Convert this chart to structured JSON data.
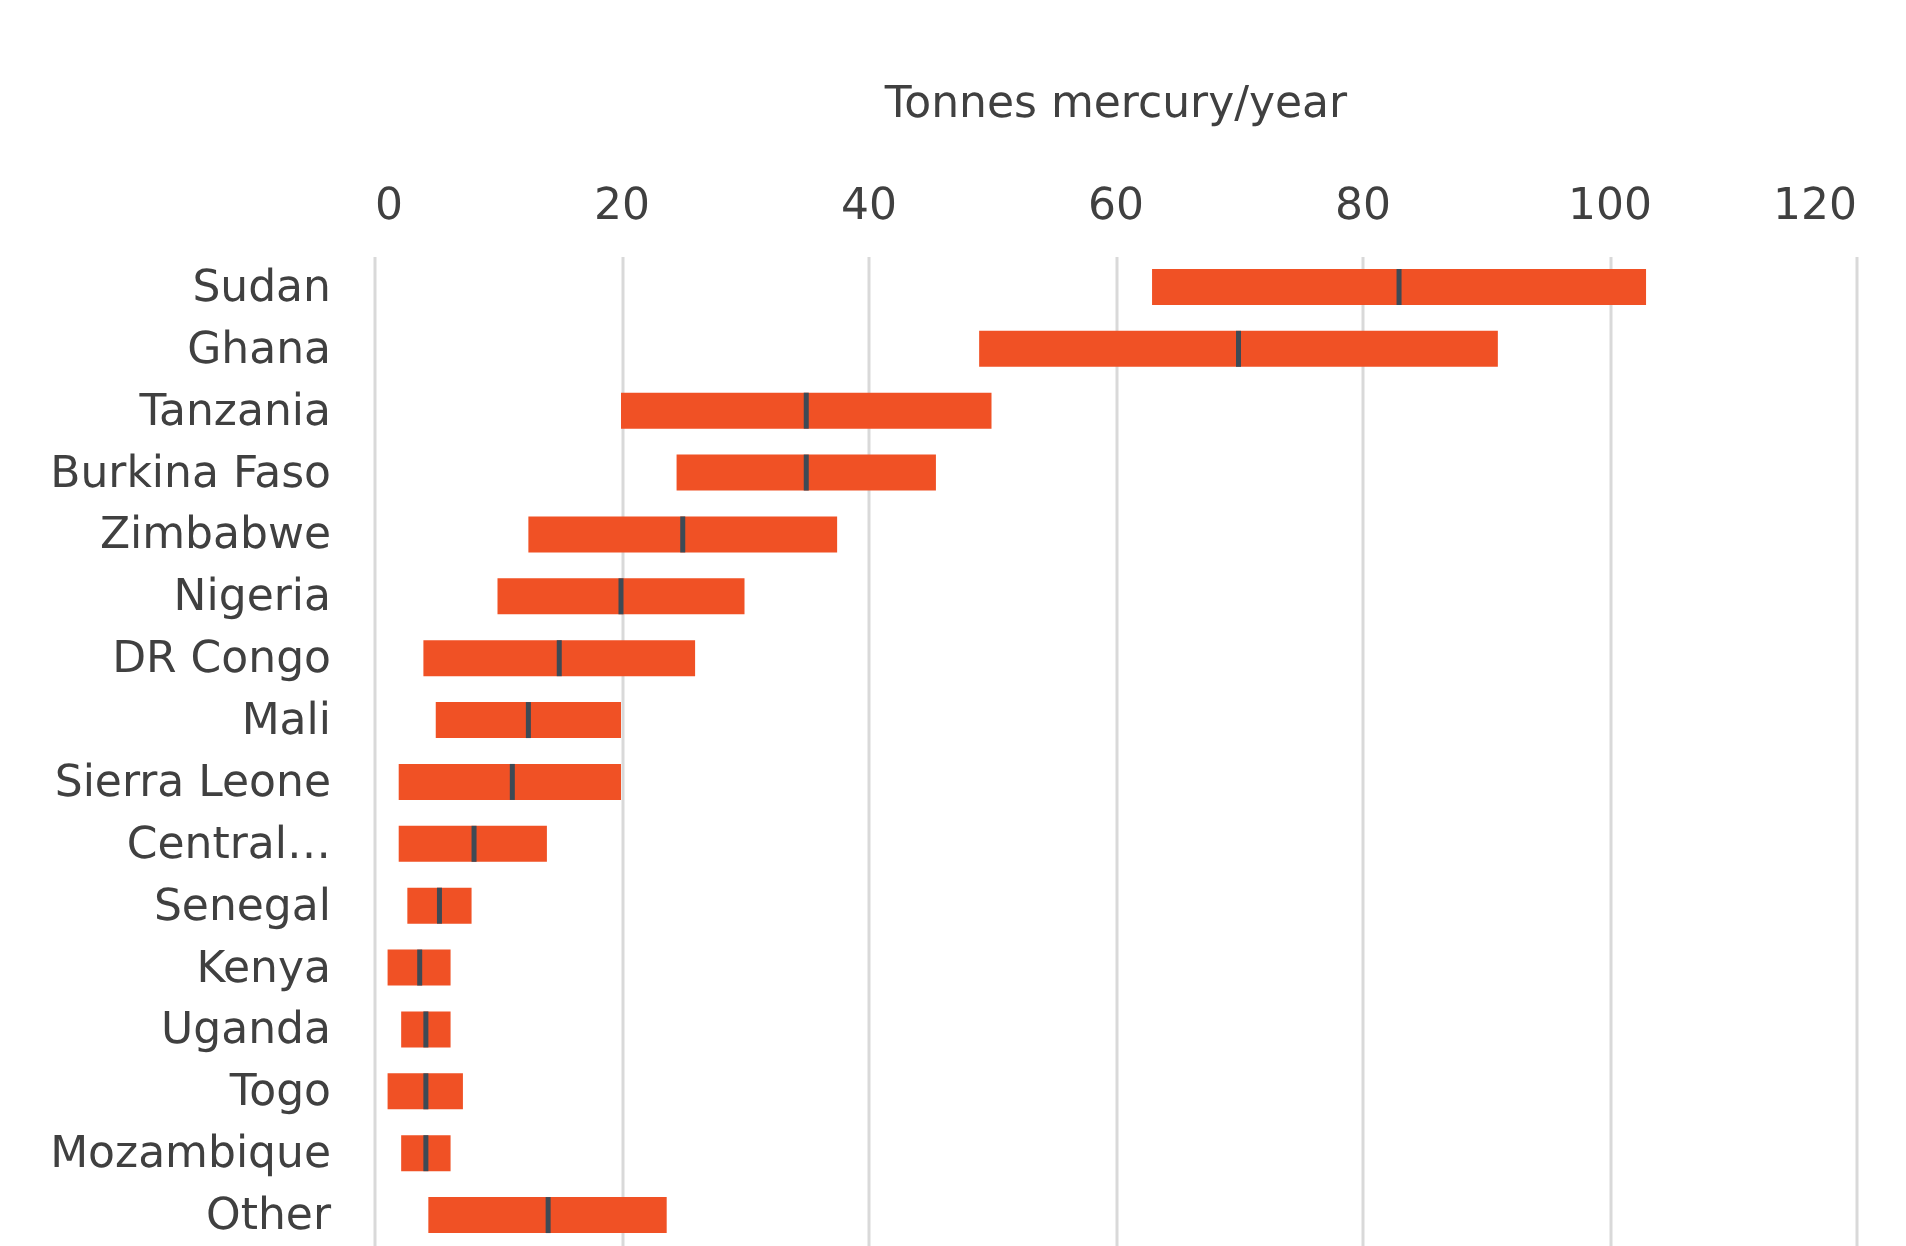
{
  "chart_data": {
    "type": "box",
    "orientation": "horizontal",
    "xlabel": "Tonnes mercury/year",
    "categories": [
      "Sudan",
      "Ghana",
      "Tanzania",
      "Burkina Faso",
      "Zimbabwe",
      "Nigeria",
      "DR Congo",
      "Mali",
      "Sierra Leone",
      "Central…",
      "Senegal",
      "Kenya",
      "Uganda",
      "Togo",
      "Mozambique",
      "Other"
    ],
    "series": [
      {
        "color": "#f05125",
        "boxes": [
          {
            "low": 63,
            "q1": 63,
            "median": 83,
            "q3": 103,
            "high": 103
          },
          {
            "low": 49,
            "q1": 49,
            "median": 70,
            "q3": 91,
            "high": 91
          },
          {
            "low": 20,
            "q1": 20,
            "median": 35,
            "q3": 50,
            "high": 50
          },
          {
            "low": 24.5,
            "q1": 24.5,
            "median": 35,
            "q3": 45.5,
            "high": 45.5
          },
          {
            "low": 12.5,
            "q1": 12.5,
            "median": 25,
            "q3": 37.5,
            "high": 37.5
          },
          {
            "low": 10,
            "q1": 10,
            "median": 20,
            "q3": 30,
            "high": 30
          },
          {
            "low": 4,
            "q1": 4,
            "median": 15,
            "q3": 26,
            "high": 26
          },
          {
            "low": 5,
            "q1": 5,
            "median": 12.5,
            "q3": 20,
            "high": 20
          },
          {
            "low": 2,
            "q1": 2,
            "median": 11.2,
            "q3": 20,
            "high": 20
          },
          {
            "low": 2,
            "q1": 2,
            "median": 8.1,
            "q3": 14,
            "high": 14
          },
          {
            "low": 2.7,
            "q1": 2.7,
            "median": 5.3,
            "q3": 7.9,
            "high": 7.9
          },
          {
            "low": 1.1,
            "q1": 1.1,
            "median": 3.7,
            "q3": 6.2,
            "high": 6.2
          },
          {
            "low": 2.2,
            "q1": 2.2,
            "median": 4.2,
            "q3": 6.2,
            "high": 6.2
          },
          {
            "low": 1.1,
            "q1": 1.1,
            "median": 4.2,
            "q3": 7.2,
            "high": 7.2
          },
          {
            "low": 2.2,
            "q1": 2.2,
            "median": 4.2,
            "q3": 6.2,
            "high": 6.2
          },
          {
            "low": 4.4,
            "q1": 4.4,
            "median": 14.1,
            "q3": 23.7,
            "high": 23.7
          }
        ]
      }
    ],
    "xlim": [
      0,
      120
    ],
    "xticks": [
      0,
      20,
      40,
      60,
      80,
      100,
      120
    ],
    "grid": "x"
  }
}
